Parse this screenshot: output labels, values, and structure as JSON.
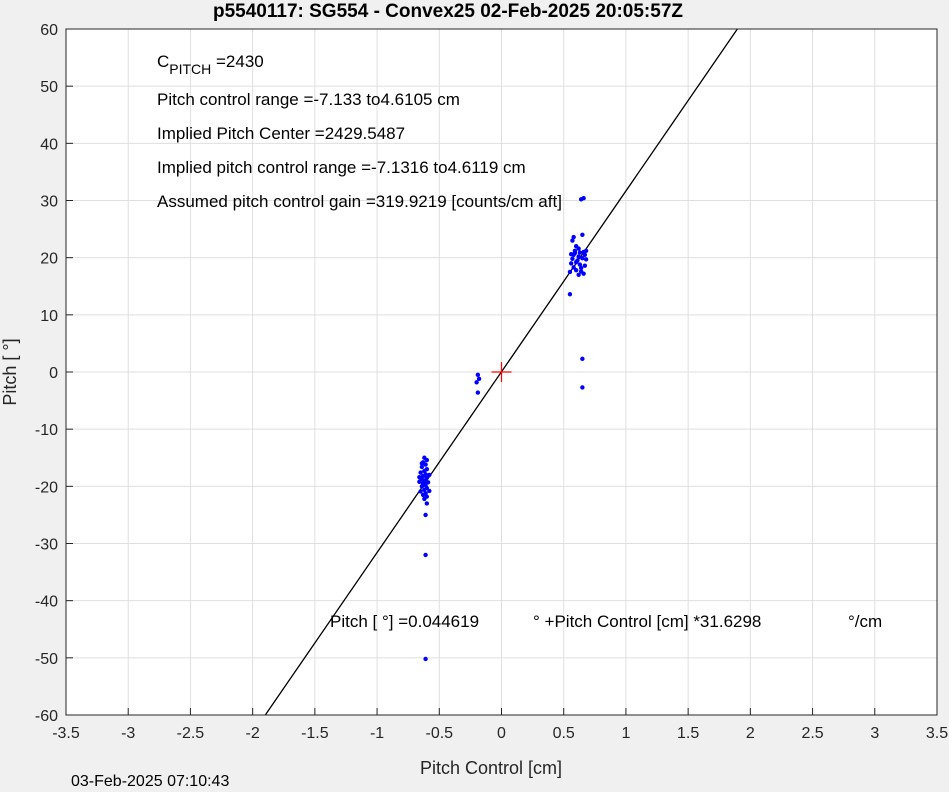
{
  "chart_data": {
    "type": "scatter",
    "title": "p5540117: SG554 - Convex25 02-Feb-2025 20:05:57Z",
    "xlabel": "Pitch Control [cm]",
    "ylabel": "Pitch [ °]",
    "xlim": [
      -3.5,
      3.5
    ],
    "ylim": [
      -60,
      60
    ],
    "xticks": [
      "-3.5",
      "-3",
      "-2.5",
      "-2",
      "-1.5",
      "-1",
      "-0.5",
      "0",
      "0.5",
      "1",
      "1.5",
      "2",
      "2.5",
      "3",
      "3.5"
    ],
    "xtick_values": [
      -3.5,
      -3,
      -2.5,
      -2,
      -1.5,
      -1,
      -0.5,
      0,
      0.5,
      1,
      1.5,
      2,
      2.5,
      3,
      3.5
    ],
    "yticks": [
      "-60",
      "-50",
      "-40",
      "-30",
      "-20",
      "-10",
      "0",
      "10",
      "20",
      "30",
      "40",
      "50",
      "60"
    ],
    "ytick_values": [
      -60,
      -50,
      -40,
      -30,
      -20,
      -10,
      0,
      10,
      20,
      30,
      40,
      50,
      60
    ],
    "grid": true,
    "fit_line": {
      "intercept": 0.044619,
      "slope": 31.6298,
      "color": "#000000"
    },
    "center_marker": {
      "x": 0,
      "y": 0,
      "color": "#ff0000"
    },
    "series": [
      {
        "color": "#0000ff",
        "points": [
          [
            -0.62,
            -15.0
          ],
          [
            -0.6,
            -15.4
          ],
          [
            -0.63,
            -15.8
          ],
          [
            -0.61,
            -16.2
          ],
          [
            -0.64,
            -16.6
          ],
          [
            -0.6,
            -17.0
          ],
          [
            -0.62,
            -17.3
          ],
          [
            -0.65,
            -17.6
          ],
          [
            -0.61,
            -17.9
          ],
          [
            -0.63,
            -18.2
          ],
          [
            -0.6,
            -18.5
          ],
          [
            -0.64,
            -18.8
          ],
          [
            -0.62,
            -19.0
          ],
          [
            -0.59,
            -19.3
          ],
          [
            -0.63,
            -19.5
          ],
          [
            -0.61,
            -19.8
          ],
          [
            -0.64,
            -20.0
          ],
          [
            -0.6,
            -20.3
          ],
          [
            -0.62,
            -20.6
          ],
          [
            -0.65,
            -20.9
          ],
          [
            -0.61,
            -21.2
          ],
          [
            -0.63,
            -21.5
          ],
          [
            -0.6,
            -21.8
          ],
          [
            -0.62,
            -22.2
          ],
          [
            -0.64,
            -16.0
          ],
          [
            -0.58,
            -18.0
          ],
          [
            -0.66,
            -19.2
          ],
          [
            -0.58,
            -20.8
          ],
          [
            -0.66,
            -18.4
          ],
          [
            -0.6,
            -23.0
          ],
          [
            -0.61,
            -25.0
          ],
          [
            -0.61,
            -32.0
          ],
          [
            -0.61,
            -50.2
          ],
          [
            -0.19,
            -0.5
          ],
          [
            -0.18,
            -1.2
          ],
          [
            -0.2,
            -1.8
          ],
          [
            -0.19,
            -3.6
          ],
          [
            0.55,
            17.5
          ],
          [
            0.56,
            19.0
          ],
          [
            0.57,
            19.8
          ],
          [
            0.58,
            20.5
          ],
          [
            0.59,
            21.2
          ],
          [
            0.6,
            22.0
          ],
          [
            0.61,
            19.5
          ],
          [
            0.62,
            20.2
          ],
          [
            0.63,
            18.8
          ],
          [
            0.64,
            17.6
          ],
          [
            0.65,
            19.9
          ],
          [
            0.66,
            21.0
          ],
          [
            0.67,
            20.5
          ],
          [
            0.68,
            19.7
          ],
          [
            0.58,
            18.3
          ],
          [
            0.6,
            17.8
          ],
          [
            0.62,
            21.6
          ],
          [
            0.64,
            18.2
          ],
          [
            0.66,
            17.2
          ],
          [
            0.63,
            20.9
          ],
          [
            0.57,
            23.0
          ],
          [
            0.58,
            23.6
          ],
          [
            0.65,
            24.0
          ],
          [
            0.55,
            13.6
          ],
          [
            0.66,
            30.4
          ],
          [
            0.64,
            30.2
          ],
          [
            0.65,
            2.3
          ],
          [
            0.65,
            -2.7
          ],
          [
            0.6,
            19.2
          ],
          [
            0.67,
            18.6
          ],
          [
            0.59,
            20.8
          ],
          [
            0.62,
            17.0
          ],
          [
            0.68,
            21.2
          ],
          [
            0.56,
            20.6
          ]
        ]
      }
    ],
    "annotations": {
      "cpitch_c": "C",
      "cpitch_sub": "PITCH",
      "cpitch_val": " =2430",
      "range": "Pitch control range =-7.133 to4.6105 cm",
      "center": "Implied Pitch Center =2429.5487",
      "implied_range": "Implied pitch control range =-7.1316 to4.6119 cm",
      "gain": "Assumed pitch control gain =319.9219 [counts/cm aft]",
      "fit_a": "Pitch [  °] =0.044619",
      "fit_b": "° +Pitch Control [cm] *31.6298",
      "fit_c": "°/cm"
    }
  },
  "footer": {
    "timestamp": "03-Feb-2025 07:10:43"
  }
}
